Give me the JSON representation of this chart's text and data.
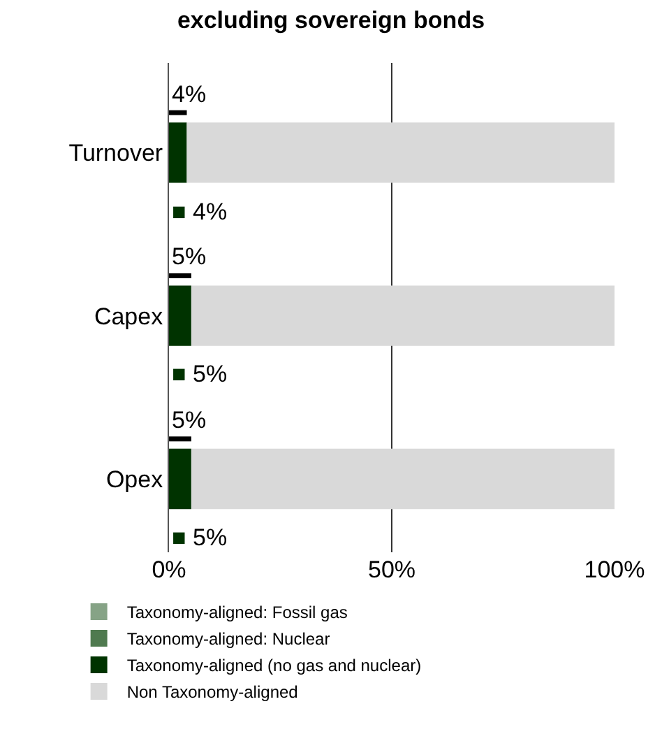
{
  "chart_data": {
    "type": "bar",
    "orientation": "horizontal",
    "title": "excluding sovereign bonds",
    "categories": [
      "Turnover",
      "Capex",
      "Opex"
    ],
    "series": [
      {
        "name": "Taxonomy-aligned: Fossil gas",
        "color": "#86a386",
        "values": [
          0,
          0,
          0
        ]
      },
      {
        "name": "Taxonomy-aligned: Nuclear",
        "color": "#4f7a4f",
        "values": [
          0,
          0,
          0
        ]
      },
      {
        "name": "Taxonomy-aligned (no gas and nuclear)",
        "color": "#003300",
        "values": [
          4,
          5,
          5
        ],
        "base": [
          0,
          0,
          0
        ]
      },
      {
        "name": "Non Taxonomy-aligned",
        "color": "#d9d9d9",
        "values": [
          96,
          95,
          95
        ],
        "base": [
          4,
          5,
          5
        ]
      },
      {
        "type": "bar",
        "color": "#000000",
        "values": [
          4,
          5,
          5
        ],
        "base": [
          0,
          0,
          0
        ],
        "value_labels": [
          "4%",
          "5%",
          "5%"
        ]
      }
    ],
    "annotations": [
      "■ 4%",
      "■ 5%",
      "■ 5%"
    ],
    "xlim": [
      0,
      100
    ],
    "xticks": [
      {
        "value": 0,
        "label": "0%"
      },
      {
        "value": 50,
        "label": "50%"
      },
      {
        "value": 100,
        "label": "100%"
      }
    ],
    "grid": "x",
    "legend": "bottom"
  }
}
